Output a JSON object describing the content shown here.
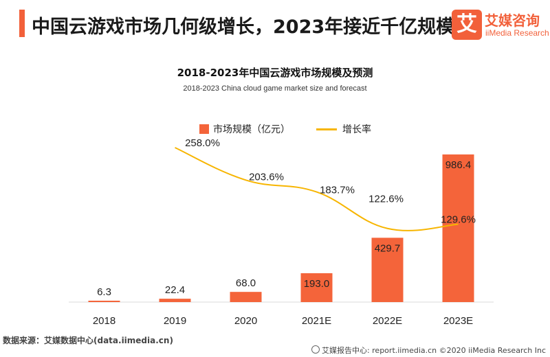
{
  "header": {
    "title": "中国云游戏市场几何级增长，2023年接近千亿规模",
    "logo_mark": "艾",
    "logo_cn": "艾媒咨询",
    "logo_en": "iiMedia Research"
  },
  "chart_data": {
    "type": "bar",
    "title": "2018-2023年中国云游戏市场规模及预测",
    "subtitle": "2018-2023 China cloud game market size and forecast",
    "categories": [
      "2018",
      "2019",
      "2020",
      "2021E",
      "2022E",
      "2023E"
    ],
    "series": [
      {
        "name": "市场规模（亿元）",
        "type": "bar",
        "color": "#f4643a",
        "values": [
          6.3,
          22.4,
          68.0,
          193.0,
          429.7,
          986.4
        ],
        "labels": [
          "6.3",
          "22.4",
          "68.0",
          "193.0",
          "429.7",
          "986.4"
        ]
      },
      {
        "name": "增长率",
        "type": "line",
        "color": "#f7b500",
        "values": [
          null,
          258.0,
          203.6,
          183.7,
          122.6,
          129.6
        ],
        "labels": [
          "",
          "258.0%",
          "203.6%",
          "183.7%",
          "122.6%",
          "129.6%"
        ]
      }
    ],
    "bar_ylim": [
      0,
      1000
    ],
    "line_ylim": [
      0,
      300
    ],
    "grid": false,
    "legend": "top-center"
  },
  "footer": {
    "source": "数据来源：艾媒数据中心(data.iimedia.cn)",
    "report": "艾媒报告中心: report.iimedia.cn  ©2020  iiMedia Research  Inc"
  }
}
